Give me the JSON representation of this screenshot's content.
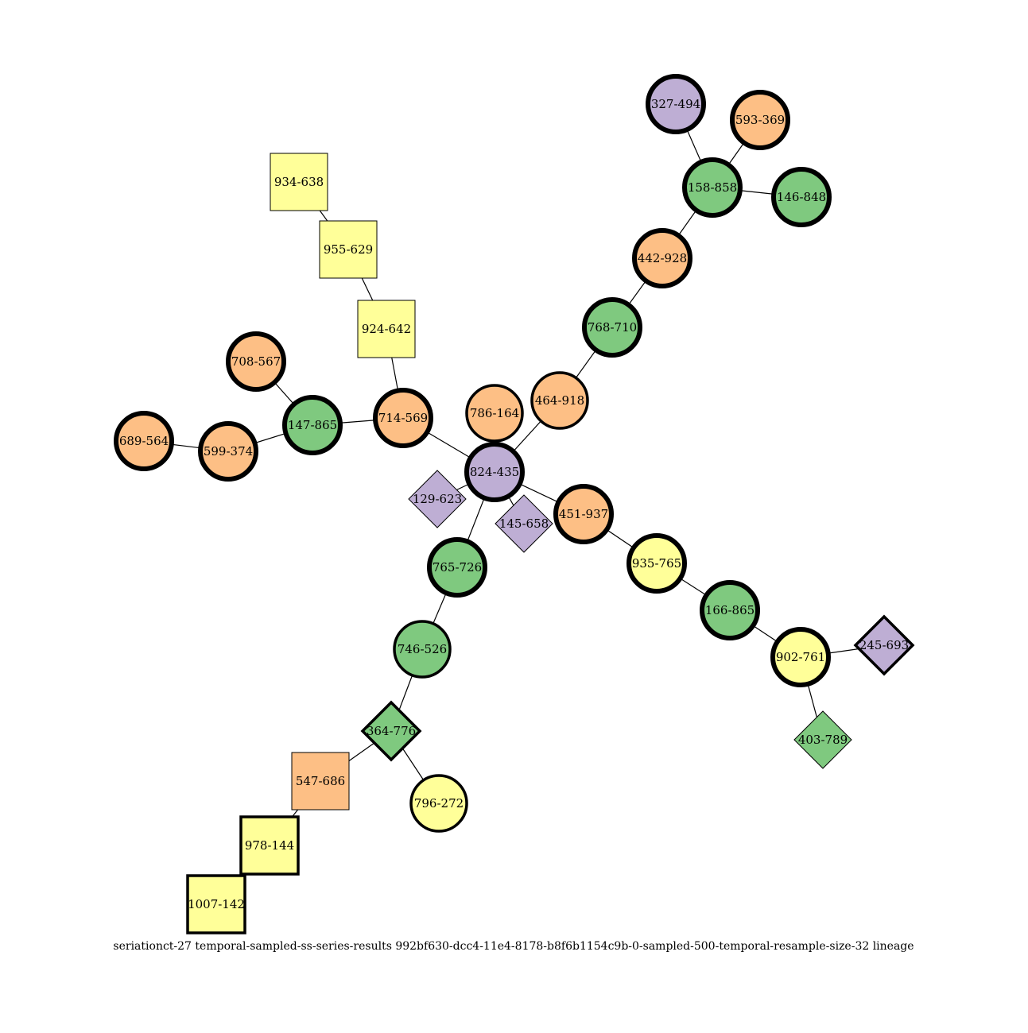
{
  "caption": "seriationct-27  temporal-sampled-ss-series-results  992bf630-dcc4-11e4-8178-b8f6b1154c9b-0-sampled-500-temporal-resample-size-32  lineage",
  "colors": {
    "orange": "#fdbf85",
    "green": "#7fc97f",
    "purple": "#beaed4",
    "yellow": "#ffff99"
  },
  "nodes": [
    {
      "id": "824-435",
      "label": "824-435",
      "shape": "circle",
      "color": "purple",
      "border": "heavy"
    },
    {
      "id": "786-164",
      "label": "786-164",
      "shape": "circle",
      "color": "orange",
      "border": "medium"
    },
    {
      "id": "464-918",
      "label": "464-918",
      "shape": "circle",
      "color": "orange",
      "border": "medium"
    },
    {
      "id": "768-710",
      "label": "768-710",
      "shape": "circle",
      "color": "green",
      "border": "heavy"
    },
    {
      "id": "442-928",
      "label": "442-928",
      "shape": "circle",
      "color": "orange",
      "border": "heavy"
    },
    {
      "id": "158-858",
      "label": "158-858",
      "shape": "circle",
      "color": "green",
      "border": "heavy"
    },
    {
      "id": "327-494",
      "label": "327-494",
      "shape": "circle",
      "color": "purple",
      "border": "heavy"
    },
    {
      "id": "593-369",
      "label": "593-369",
      "shape": "circle",
      "color": "orange",
      "border": "heavy"
    },
    {
      "id": "146-848",
      "label": "146-848",
      "shape": "circle",
      "color": "green",
      "border": "heavy"
    },
    {
      "id": "714-569",
      "label": "714-569",
      "shape": "circle",
      "color": "orange",
      "border": "heavy"
    },
    {
      "id": "924-642",
      "label": "924-642",
      "shape": "square",
      "color": "yellow",
      "border": "thin"
    },
    {
      "id": "955-629",
      "label": "955-629",
      "shape": "square",
      "color": "yellow",
      "border": "thin"
    },
    {
      "id": "934-638",
      "label": "934-638",
      "shape": "square",
      "color": "yellow",
      "border": "thin"
    },
    {
      "id": "147-865",
      "label": "147-865",
      "shape": "circle",
      "color": "green",
      "border": "heavy"
    },
    {
      "id": "708-567",
      "label": "708-567",
      "shape": "circle",
      "color": "orange",
      "border": "heavy"
    },
    {
      "id": "599-374",
      "label": "599-374",
      "shape": "circle",
      "color": "orange",
      "border": "heavy"
    },
    {
      "id": "689-564",
      "label": "689-564",
      "shape": "circle",
      "color": "orange",
      "border": "heavy"
    },
    {
      "id": "129-623",
      "label": "129-623",
      "shape": "diamond",
      "color": "purple",
      "border": "thin"
    },
    {
      "id": "145-658",
      "label": "145-658",
      "shape": "diamond",
      "color": "purple",
      "border": "thin"
    },
    {
      "id": "451-937",
      "label": "451-937",
      "shape": "circle",
      "color": "orange",
      "border": "heavy"
    },
    {
      "id": "935-765",
      "label": "935-765",
      "shape": "circle",
      "color": "yellow",
      "border": "heavy"
    },
    {
      "id": "166-865",
      "label": "166-865",
      "shape": "circle",
      "color": "green",
      "border": "heavy"
    },
    {
      "id": "902-761",
      "label": "902-761",
      "shape": "circle",
      "color": "yellow",
      "border": "heavy"
    },
    {
      "id": "245-693",
      "label": "245-693",
      "shape": "diamond",
      "color": "purple",
      "border": "medium"
    },
    {
      "id": "403-789",
      "label": "403-789",
      "shape": "diamond",
      "color": "green",
      "border": "thin"
    },
    {
      "id": "765-726",
      "label": "765-726",
      "shape": "circle",
      "color": "green",
      "border": "heavy"
    },
    {
      "id": "746-526",
      "label": "746-526",
      "shape": "circle",
      "color": "green",
      "border": "medium"
    },
    {
      "id": "364-776",
      "label": "364-776",
      "shape": "diamond",
      "color": "green",
      "border": "medium"
    },
    {
      "id": "796-272",
      "label": "796-272",
      "shape": "circle",
      "color": "yellow",
      "border": "medium"
    },
    {
      "id": "547-686",
      "label": "547-686",
      "shape": "square",
      "color": "orange",
      "border": "thin"
    },
    {
      "id": "978-144",
      "label": "978-144",
      "shape": "square",
      "color": "yellow",
      "border": "medium"
    },
    {
      "id": "1007-142",
      "label": "1007-142",
      "shape": "square",
      "color": "yellow",
      "border": "medium"
    }
  ],
  "edges": [
    [
      "824-435",
      "464-918"
    ],
    [
      "464-918",
      "768-710"
    ],
    [
      "768-710",
      "442-928"
    ],
    [
      "442-928",
      "158-858"
    ],
    [
      "158-858",
      "327-494"
    ],
    [
      "158-858",
      "593-369"
    ],
    [
      "158-858",
      "146-848"
    ],
    [
      "824-435",
      "714-569"
    ],
    [
      "714-569",
      "924-642"
    ],
    [
      "924-642",
      "955-629"
    ],
    [
      "955-629",
      "934-638"
    ],
    [
      "714-569",
      "147-865"
    ],
    [
      "147-865",
      "708-567"
    ],
    [
      "147-865",
      "599-374"
    ],
    [
      "599-374",
      "689-564"
    ],
    [
      "824-435",
      "129-623"
    ],
    [
      "824-435",
      "145-658"
    ],
    [
      "824-435",
      "451-937"
    ],
    [
      "451-937",
      "935-765"
    ],
    [
      "935-765",
      "166-865"
    ],
    [
      "166-865",
      "902-761"
    ],
    [
      "902-761",
      "245-693"
    ],
    [
      "902-761",
      "403-789"
    ],
    [
      "824-435",
      "765-726"
    ],
    [
      "765-726",
      "746-526"
    ],
    [
      "746-526",
      "364-776"
    ],
    [
      "364-776",
      "796-272"
    ],
    [
      "364-776",
      "547-686"
    ],
    [
      "547-686",
      "978-144"
    ],
    [
      "978-144",
      "1007-142"
    ]
  ]
}
